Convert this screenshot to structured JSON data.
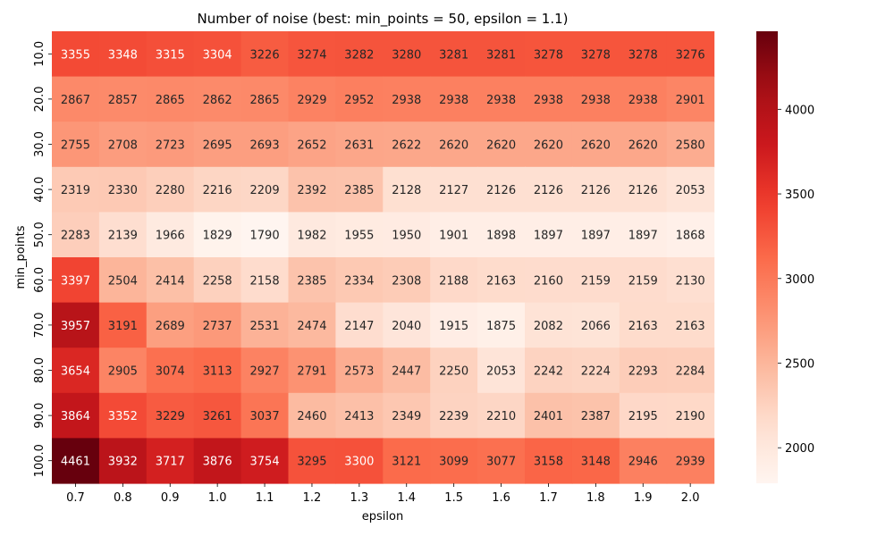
{
  "chart_data": {
    "type": "heatmap",
    "title": "Number of noise (best: min_points = 50, epsilon = 1.1)",
    "xlabel": "epsilon",
    "ylabel": "min_points",
    "x": [
      "0.7",
      "0.8",
      "0.9",
      "1.0",
      "1.1",
      "1.2",
      "1.3",
      "1.4",
      "1.5",
      "1.6",
      "1.7",
      "1.8",
      "1.9",
      "2.0"
    ],
    "y": [
      "10.0",
      "20.0",
      "30.0",
      "40.0",
      "50.0",
      "60.0",
      "70.0",
      "80.0",
      "90.0",
      "100.0"
    ],
    "values": [
      [
        3355,
        3348,
        3315,
        3304,
        3226,
        3274,
        3282,
        3280,
        3281,
        3281,
        3278,
        3278,
        3278,
        3276
      ],
      [
        2867,
        2857,
        2865,
        2862,
        2865,
        2929,
        2952,
        2938,
        2938,
        2938,
        2938,
        2938,
        2938,
        2901
      ],
      [
        2755,
        2708,
        2723,
        2695,
        2693,
        2652,
        2631,
        2622,
        2620,
        2620,
        2620,
        2620,
        2620,
        2580
      ],
      [
        2319,
        2330,
        2280,
        2216,
        2209,
        2392,
        2385,
        2128,
        2127,
        2126,
        2126,
        2126,
        2126,
        2053
      ],
      [
        2283,
        2139,
        1966,
        1829,
        1790,
        1982,
        1955,
        1950,
        1901,
        1898,
        1897,
        1897,
        1897,
        1868
      ],
      [
        3397,
        2504,
        2414,
        2258,
        2158,
        2385,
        2334,
        2308,
        2188,
        2163,
        2160,
        2159,
        2159,
        2130
      ],
      [
        3957,
        3191,
        2689,
        2737,
        2531,
        2474,
        2147,
        2040,
        1915,
        1875,
        2082,
        2066,
        2163,
        2163
      ],
      [
        3654,
        2905,
        3074,
        3113,
        2927,
        2791,
        2573,
        2447,
        2250,
        2053,
        2242,
        2224,
        2293,
        2284
      ],
      [
        3864,
        3352,
        3229,
        3261,
        3037,
        2460,
        2413,
        2349,
        2239,
        2210,
        2401,
        2387,
        2195,
        2190
      ],
      [
        4461,
        3932,
        3717,
        3876,
        3754,
        3295,
        3300,
        3121,
        3099,
        3077,
        3158,
        3148,
        2946,
        2939
      ]
    ],
    "colormap": "Reds",
    "colorbar": {
      "range": [
        1790,
        4461
      ],
      "ticks": [
        "2000",
        "2500",
        "3000",
        "3500",
        "4000"
      ]
    },
    "grid": false,
    "legend": "colorbar-right"
  }
}
